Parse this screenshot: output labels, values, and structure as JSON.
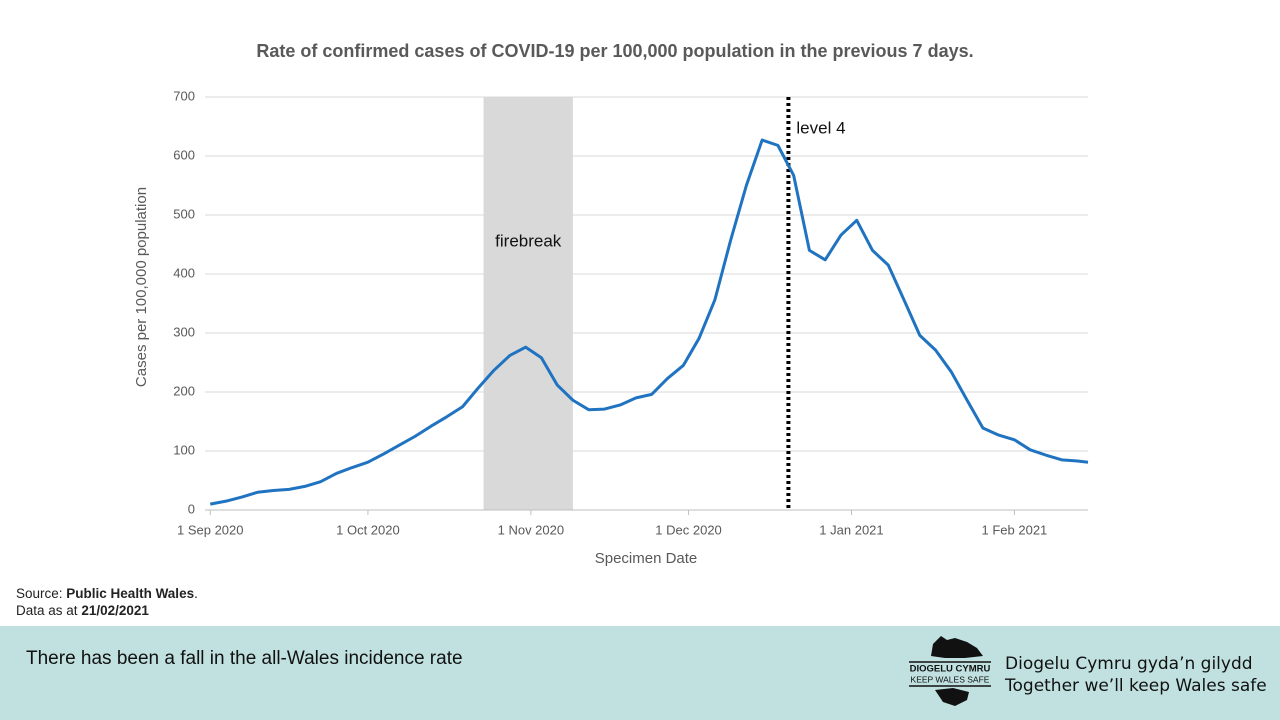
{
  "chart_data": {
    "type": "line",
    "title": "Rate of confirmed cases of COVID-19 per 100,000 population in the previous 7 days.",
    "x_label": "Specimen Date",
    "y_label": "Cases per 100,000 population",
    "x": [
      "2020-09-01",
      "2020-09-04",
      "2020-09-07",
      "2020-09-10",
      "2020-09-13",
      "2020-09-16",
      "2020-09-19",
      "2020-09-22",
      "2020-09-25",
      "2020-09-28",
      "2020-10-01",
      "2020-10-04",
      "2020-10-07",
      "2020-10-10",
      "2020-10-13",
      "2020-10-16",
      "2020-10-19",
      "2020-10-22",
      "2020-10-25",
      "2020-10-28",
      "2020-10-31",
      "2020-11-03",
      "2020-11-06",
      "2020-11-09",
      "2020-11-12",
      "2020-11-15",
      "2020-11-18",
      "2020-11-21",
      "2020-11-24",
      "2020-11-27",
      "2020-11-30",
      "2020-12-03",
      "2020-12-06",
      "2020-12-09",
      "2020-12-12",
      "2020-12-15",
      "2020-12-18",
      "2020-12-21",
      "2020-12-24",
      "2020-12-27",
      "2020-12-30",
      "2021-01-02",
      "2021-01-05",
      "2021-01-08",
      "2021-01-11",
      "2021-01-14",
      "2021-01-17",
      "2021-01-20",
      "2021-01-23",
      "2021-01-26",
      "2021-01-29",
      "2021-02-01",
      "2021-02-04",
      "2021-02-07",
      "2021-02-10",
      "2021-02-13",
      "2021-02-15"
    ],
    "series": [
      {
        "name": "Rate",
        "color": "#1f73c1",
        "values": [
          10,
          15,
          22,
          30,
          33,
          35,
          40,
          48,
          62,
          72,
          81,
          95,
          110,
          125,
          142,
          158,
          175,
          207,
          237,
          262,
          276,
          258,
          212,
          186,
          170,
          171,
          178,
          190,
          196,
          223,
          245,
          291,
          356,
          457,
          550,
          627,
          618,
          567,
          440,
          424,
          466,
          491,
          440,
          415,
          356,
          296,
          271,
          234,
          186,
          139,
          127,
          119,
          102,
          93,
          85,
          83,
          81
        ]
      }
    ],
    "xlim": [
      "2020-08-31",
      "2021-02-15"
    ],
    "xticks": [
      {
        "value": "2020-09-01",
        "label": "1 Sep 2020"
      },
      {
        "value": "2020-10-01",
        "label": "1 Oct 2020"
      },
      {
        "value": "2020-11-01",
        "label": "1 Nov 2020"
      },
      {
        "value": "2020-12-01",
        "label": "1 Dec 2020"
      },
      {
        "value": "2021-01-01",
        "label": "1 Jan 2021"
      },
      {
        "value": "2021-02-01",
        "label": "1 Feb 2021"
      }
    ],
    "ylim": [
      0,
      700
    ],
    "yticks": [
      0,
      100,
      200,
      300,
      400,
      500,
      600,
      700
    ],
    "grid": true,
    "bands": [
      {
        "label": "firebreak",
        "start": "2020-10-23",
        "end": "2020-11-09",
        "color": "#d9d9d9"
      }
    ],
    "vlines": [
      {
        "label": "level 4",
        "x": "2020-12-20",
        "color": "#000000"
      }
    ]
  },
  "source": {
    "prefix": "Source:",
    "name": "Public Health Wales",
    "suffix": ".",
    "date_prefix": "Data as at",
    "date": "21/02/2021"
  },
  "footer": {
    "message": "There has been a fall in the all-Wales incidence rate",
    "logo_top": "DIOGELU CYMRU",
    "logo_bottom": "KEEP WALES SAFE",
    "tagline_cy": "Diogelu Cymru gyda’n gilydd",
    "tagline_en": "Together we’ll keep Wales safe"
  }
}
